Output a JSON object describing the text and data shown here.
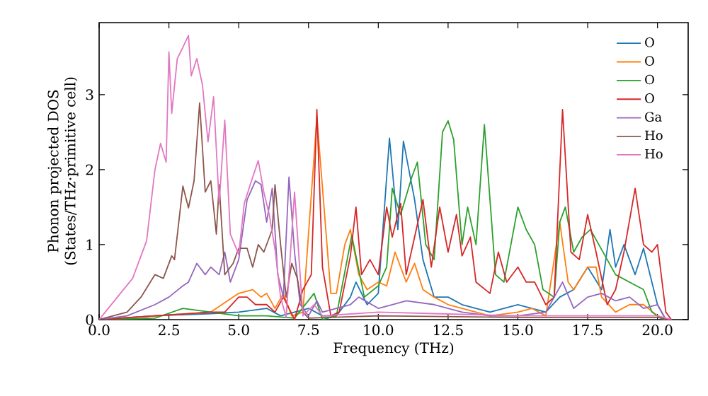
{
  "chart_data": {
    "type": "line",
    "xlabel": "Frequency (THz)",
    "ylabel": "Phonon projected DOS\n(States/THz·primitive cell)",
    "xlim": [
      0,
      21.1
    ],
    "ylim": [
      0,
      3.96
    ],
    "xticks": [
      {
        "value": 0,
        "label": "0.0"
      },
      {
        "value": 2.5,
        "label": "2.5"
      },
      {
        "value": 5,
        "label": "5.0"
      },
      {
        "value": 7.5,
        "label": "7.5"
      },
      {
        "value": 10,
        "label": "10.0"
      },
      {
        "value": 12.5,
        "label": "12.5"
      },
      {
        "value": 15,
        "label": "15.0"
      },
      {
        "value": 17.5,
        "label": "17.5"
      },
      {
        "value": 20,
        "label": "20.0"
      }
    ],
    "yticks": [
      0,
      1,
      2,
      3
    ],
    "legend": "top right",
    "grid": false,
    "marker": "none",
    "line_style": "solid",
    "series": [
      {
        "name": "O",
        "color": "#1f77b4",
        "x": [
          0,
          2,
          4,
          5,
          6,
          6.5,
          7,
          7.5,
          8,
          8.5,
          9,
          9.2,
          9.6,
          10,
          10.4,
          10.7,
          10.9,
          11.3,
          11.6,
          12,
          12.5,
          13,
          14,
          15,
          15.5,
          16,
          16.5,
          17,
          17.5,
          18,
          18.3,
          18.5,
          18.8,
          19.2,
          19.5,
          20,
          20.3
        ],
        "values": [
          0,
          0.05,
          0.08,
          0.1,
          0.15,
          0.05,
          0.1,
          0.15,
          0.05,
          0.05,
          0.3,
          0.5,
          0.2,
          0.35,
          2.42,
          1.2,
          2.38,
          1.6,
          0.8,
          0.3,
          0.3,
          0.2,
          0.1,
          0.2,
          0.15,
          0.1,
          0.3,
          0.4,
          0.7,
          0.4,
          1.2,
          0.7,
          1.0,
          0.6,
          0.95,
          0.2,
          0
        ]
      },
      {
        "name": "O",
        "color": "#ff7f0e",
        "x": [
          0,
          2,
          4,
          5,
          5.5,
          5.8,
          6,
          6.3,
          6.6,
          6.9,
          7.3,
          7.8,
          8.3,
          8.5,
          8.8,
          9,
          9.3,
          9.6,
          10,
          10.3,
          10.6,
          11,
          11.3,
          11.6,
          12,
          12.5,
          13,
          14,
          15,
          15.5,
          16,
          16.5,
          16.8,
          17,
          17.5,
          17.8,
          18,
          18.5,
          19,
          19.5,
          20,
          20.3
        ],
        "values": [
          0,
          0.05,
          0.1,
          0.35,
          0.4,
          0.3,
          0.35,
          0.15,
          0.35,
          0.05,
          0.1,
          2.7,
          0.35,
          0.35,
          1.0,
          1.2,
          0.6,
          0.4,
          0.5,
          0.45,
          0.9,
          0.5,
          0.75,
          0.4,
          0.3,
          0.2,
          0.15,
          0.05,
          0.1,
          0.15,
          0.05,
          1.3,
          0.5,
          0.4,
          0.7,
          0.7,
          0.3,
          0.1,
          0.2,
          0.2,
          0.05,
          0
        ]
      },
      {
        "name": "O",
        "color": "#2ca02c",
        "x": [
          0,
          2,
          3,
          4,
          5,
          6,
          7,
          7.7,
          8,
          8.5,
          9.05,
          9.5,
          10,
          10.3,
          10.5,
          10.8,
          11.2,
          11.4,
          11.7,
          12,
          12.3,
          12.5,
          12.7,
          13,
          13.2,
          13.5,
          13.8,
          14,
          14.2,
          14.5,
          15,
          15.3,
          15.6,
          15.9,
          16.3,
          16.5,
          16.7,
          17,
          17.3,
          17.6,
          17.9,
          18.2,
          18.5,
          19,
          19.5,
          19.8,
          20.2
        ],
        "values": [
          0,
          0.02,
          0.15,
          0.1,
          0.05,
          0.05,
          0.02,
          0.35,
          0,
          0.05,
          1.12,
          0.3,
          0.45,
          0.7,
          1.75,
          1.4,
          1.9,
          2.1,
          1.0,
          0.8,
          2.5,
          2.65,
          2.4,
          1.0,
          1.5,
          1.0,
          2.6,
          1.6,
          0.6,
          0.5,
          1.5,
          1.2,
          1.0,
          0.4,
          0.3,
          1.3,
          1.5,
          0.9,
          1.1,
          1.2,
          1.0,
          0.8,
          0.6,
          0.5,
          0.4,
          0.1,
          0
        ]
      },
      {
        "name": "O",
        "color": "#d62728",
        "x": [
          0,
          2,
          4,
          4.5,
          5,
          5.3,
          5.6,
          6,
          6.3,
          6.6,
          7,
          7.3,
          7.6,
          7.8,
          8,
          8.3,
          8.6,
          9,
          9.2,
          9.4,
          9.7,
          10,
          10.3,
          10.5,
          10.8,
          11,
          11.3,
          11.6,
          11.9,
          12.2,
          12.5,
          12.8,
          13,
          13.3,
          13.5,
          14,
          14.3,
          14.6,
          15,
          15.3,
          15.6,
          16,
          16.3,
          16.6,
          16.9,
          17.2,
          17.5,
          17.8,
          18.2,
          18.5,
          18.8,
          19.2,
          19.5,
          19.8,
          20,
          20.3,
          20.5
        ],
        "values": [
          0,
          0.05,
          0.1,
          0.1,
          0.3,
          0.3,
          0.2,
          0.2,
          0.1,
          0.3,
          0,
          0.4,
          0.6,
          2.8,
          0.7,
          0.05,
          0.1,
          0.85,
          1.5,
          0.6,
          0.8,
          0.6,
          1.5,
          1.1,
          1.55,
          0.6,
          1.1,
          1.6,
          0.7,
          1.5,
          0.9,
          1.4,
          0.85,
          1.1,
          0.5,
          0.35,
          0.9,
          0.5,
          0.7,
          0.5,
          0.5,
          0.2,
          0.3,
          2.8,
          0.9,
          0.8,
          1.4,
          0.9,
          0.2,
          0.4,
          0.9,
          1.75,
          1.0,
          0.9,
          1.0,
          0.1,
          0
        ]
      },
      {
        "name": "Ga",
        "color": "#9467bd",
        "x": [
          0,
          1,
          2,
          2.5,
          3,
          3.2,
          3.5,
          3.8,
          4,
          4.3,
          4.5,
          4.7,
          5,
          5.3,
          5.6,
          5.8,
          6,
          6.2,
          6.4,
          6.6,
          6.8,
          7,
          7.2,
          7.5,
          7.8,
          8,
          9,
          9.3,
          10,
          10.5,
          11,
          12,
          13,
          14,
          15,
          16,
          16.6,
          17,
          17.5,
          18,
          18.5,
          19,
          19.5,
          20,
          20.3
        ],
        "values": [
          0,
          0.05,
          0.2,
          0.3,
          0.45,
          0.5,
          0.75,
          0.6,
          0.7,
          0.6,
          0.9,
          0.5,
          0.8,
          1.6,
          1.85,
          1.8,
          1.3,
          1.75,
          0.6,
          0.3,
          1.9,
          0.9,
          0.2,
          0.05,
          0.25,
          0.1,
          0.2,
          0.3,
          0.15,
          0.2,
          0.25,
          0.2,
          0.1,
          0.05,
          0.05,
          0.1,
          0.5,
          0.15,
          0.3,
          0.35,
          0.25,
          0.3,
          0.15,
          0.2,
          0
        ]
      },
      {
        "name": "Ho",
        "color": "#8c564b",
        "x": [
          0,
          1,
          1.5,
          2,
          2.3,
          2.6,
          2.7,
          3,
          3.2,
          3.4,
          3.6,
          3.8,
          4,
          4.2,
          4.3,
          4.5,
          4.8,
          5,
          5.3,
          5.5,
          5.7,
          5.9,
          6.2,
          6.3,
          6.5,
          6.7,
          6.9,
          7.1,
          7.3,
          7.5,
          10,
          15,
          20,
          20.5
        ],
        "values": [
          0,
          0.1,
          0.3,
          0.6,
          0.55,
          0.85,
          0.8,
          1.78,
          1.49,
          1.85,
          2.89,
          1.7,
          1.85,
          1.14,
          1.8,
          0.6,
          0.75,
          0.95,
          0.95,
          0.7,
          1.0,
          0.9,
          1.2,
          1.8,
          1.0,
          0.3,
          0.75,
          0.55,
          0.1,
          0.02,
          0.05,
          0.03,
          0.03,
          0
        ]
      },
      {
        "name": "Ho",
        "color": "#e377c2",
        "x": [
          0,
          1.2,
          1.7,
          2,
          2.2,
          2.4,
          2.5,
          2.6,
          2.8,
          3,
          3.2,
          3.3,
          3.5,
          3.7,
          3.9,
          4.1,
          4.3,
          4.5,
          4.7,
          5,
          5.2,
          5.5,
          5.7,
          5.9,
          6.1,
          6.3,
          6.5,
          6.7,
          7,
          7.3,
          7.7,
          8,
          10,
          12,
          15,
          20,
          20.5
        ],
        "values": [
          0,
          0.55,
          1.05,
          2.0,
          2.35,
          2.1,
          3.57,
          2.75,
          3.48,
          3.63,
          3.79,
          3.25,
          3.48,
          3.13,
          2.37,
          2.97,
          1.55,
          2.66,
          1.14,
          0.87,
          1.55,
          1.9,
          2.12,
          1.7,
          1.39,
          0.94,
          0.3,
          0.03,
          1.7,
          0.05,
          0.2,
          0.05,
          0.1,
          0.08,
          0.05,
          0.05,
          0
        ]
      }
    ]
  }
}
